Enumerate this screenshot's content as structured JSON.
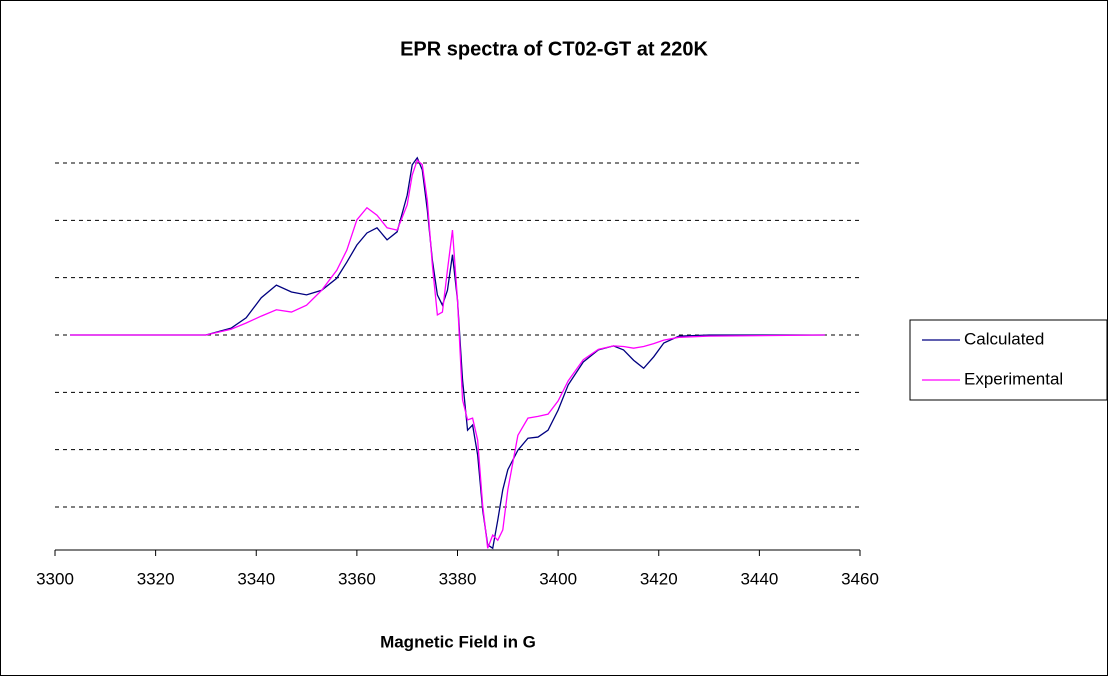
{
  "chart_data": {
    "type": "line",
    "title": "EPR spectra of CT02-GT at 220K",
    "x_label": "Magnetic Field in G",
    "x": [
      3303,
      3330,
      3335,
      3338,
      3341,
      3344,
      3347,
      3350,
      3353,
      3356,
      3358,
      3360,
      3362,
      3364,
      3366,
      3368,
      3370,
      3371,
      3372,
      3373,
      3374,
      3375,
      3376,
      3377,
      3378,
      3379,
      3380,
      3381,
      3382,
      3383,
      3384,
      3385,
      3386,
      3387,
      3388,
      3389,
      3390,
      3392,
      3394,
      3396,
      3398,
      3400,
      3402,
      3405,
      3408,
      3411,
      3413,
      3415,
      3417,
      3419,
      3421,
      3424,
      3430,
      3453
    ],
    "series": [
      {
        "name": "Calculated",
        "color": "#000080",
        "values": [
          0,
          0,
          0.12,
          0.3,
          0.65,
          0.87,
          0.75,
          0.7,
          0.78,
          0.99,
          1.27,
          1.57,
          1.78,
          1.87,
          1.66,
          1.8,
          2.44,
          2.97,
          3.09,
          2.88,
          2.18,
          1.31,
          0.7,
          0.52,
          0.78,
          1.4,
          0.61,
          -0.78,
          -1.66,
          -1.57,
          -2.09,
          -3.05,
          -3.66,
          -3.72,
          -3.23,
          -2.7,
          -2.35,
          -2.01,
          -1.8,
          -1.78,
          -1.66,
          -1.31,
          -0.87,
          -0.47,
          -0.26,
          -0.19,
          -0.26,
          -0.44,
          -0.58,
          -0.38,
          -0.14,
          -0.02,
          0,
          0
        ]
      },
      {
        "name": "Experimental",
        "color": "#ff00ff",
        "values": [
          0,
          0,
          0.1,
          0.21,
          0.33,
          0.44,
          0.4,
          0.52,
          0.78,
          1.13,
          1.48,
          2.01,
          2.22,
          2.09,
          1.87,
          1.83,
          2.27,
          2.79,
          3.05,
          2.97,
          2.35,
          1.22,
          0.35,
          0.4,
          1.13,
          1.83,
          0.61,
          -1.13,
          -1.48,
          -1.45,
          -1.83,
          -2.97,
          -3.72,
          -3.49,
          -3.58,
          -3.4,
          -2.7,
          -1.75,
          -1.45,
          -1.42,
          -1.38,
          -1.15,
          -0.8,
          -0.43,
          -0.25,
          -0.19,
          -0.2,
          -0.23,
          -0.2,
          -0.15,
          -0.09,
          -0.04,
          -0.02,
          0
        ]
      }
    ],
    "xlim": [
      3300,
      3460
    ],
    "xticks": [
      3300,
      3320,
      3340,
      3360,
      3380,
      3400,
      3420,
      3440,
      3460
    ],
    "ylim": [
      -3.75,
      3.25
    ],
    "yticks": [
      -3,
      -2,
      -1,
      0,
      1,
      2,
      3
    ],
    "ytick_labels_shown": false,
    "grid": true,
    "legend": "right"
  }
}
